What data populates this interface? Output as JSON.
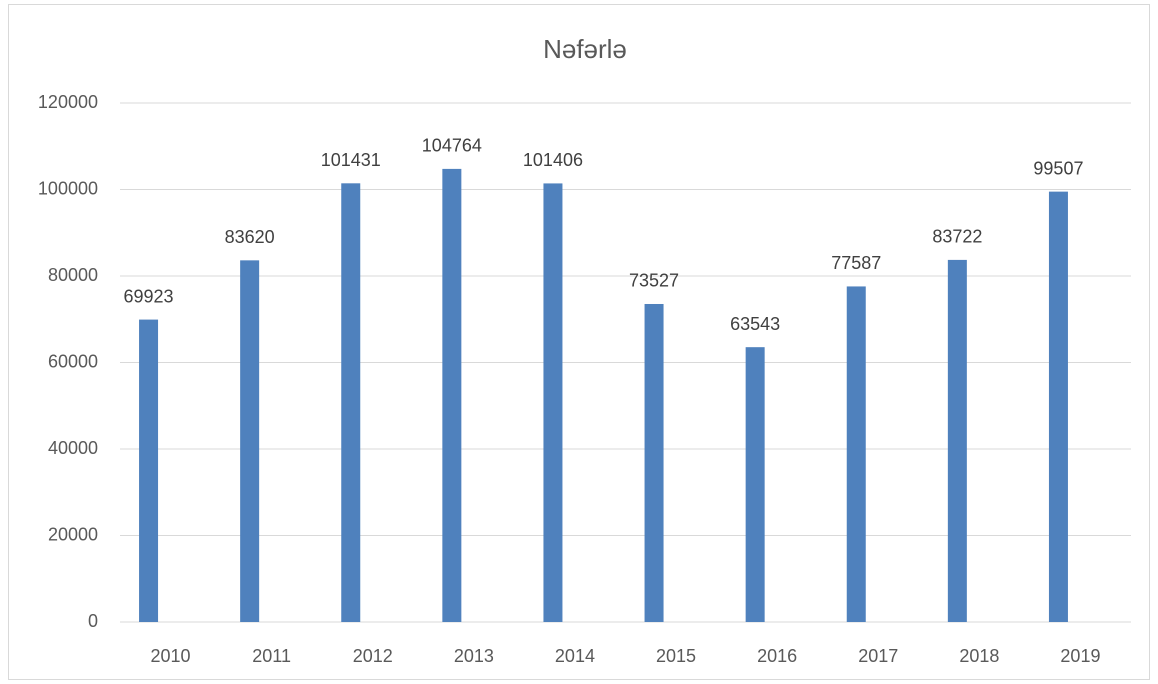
{
  "chart_data": {
    "type": "bar",
    "title": "Nəfərlə",
    "categories": [
      "2010",
      "2011",
      "2012",
      "2013",
      "2014",
      "2015",
      "2016",
      "2017",
      "2018",
      "2019"
    ],
    "values": [
      69923,
      83620,
      101431,
      104764,
      101406,
      73527,
      63543,
      77587,
      83722,
      99507
    ],
    "color": "#4f81bd",
    "ylim": [
      0,
      120000
    ],
    "yticks": [
      0,
      20000,
      40000,
      60000,
      80000,
      100000,
      120000
    ],
    "grid": true
  }
}
